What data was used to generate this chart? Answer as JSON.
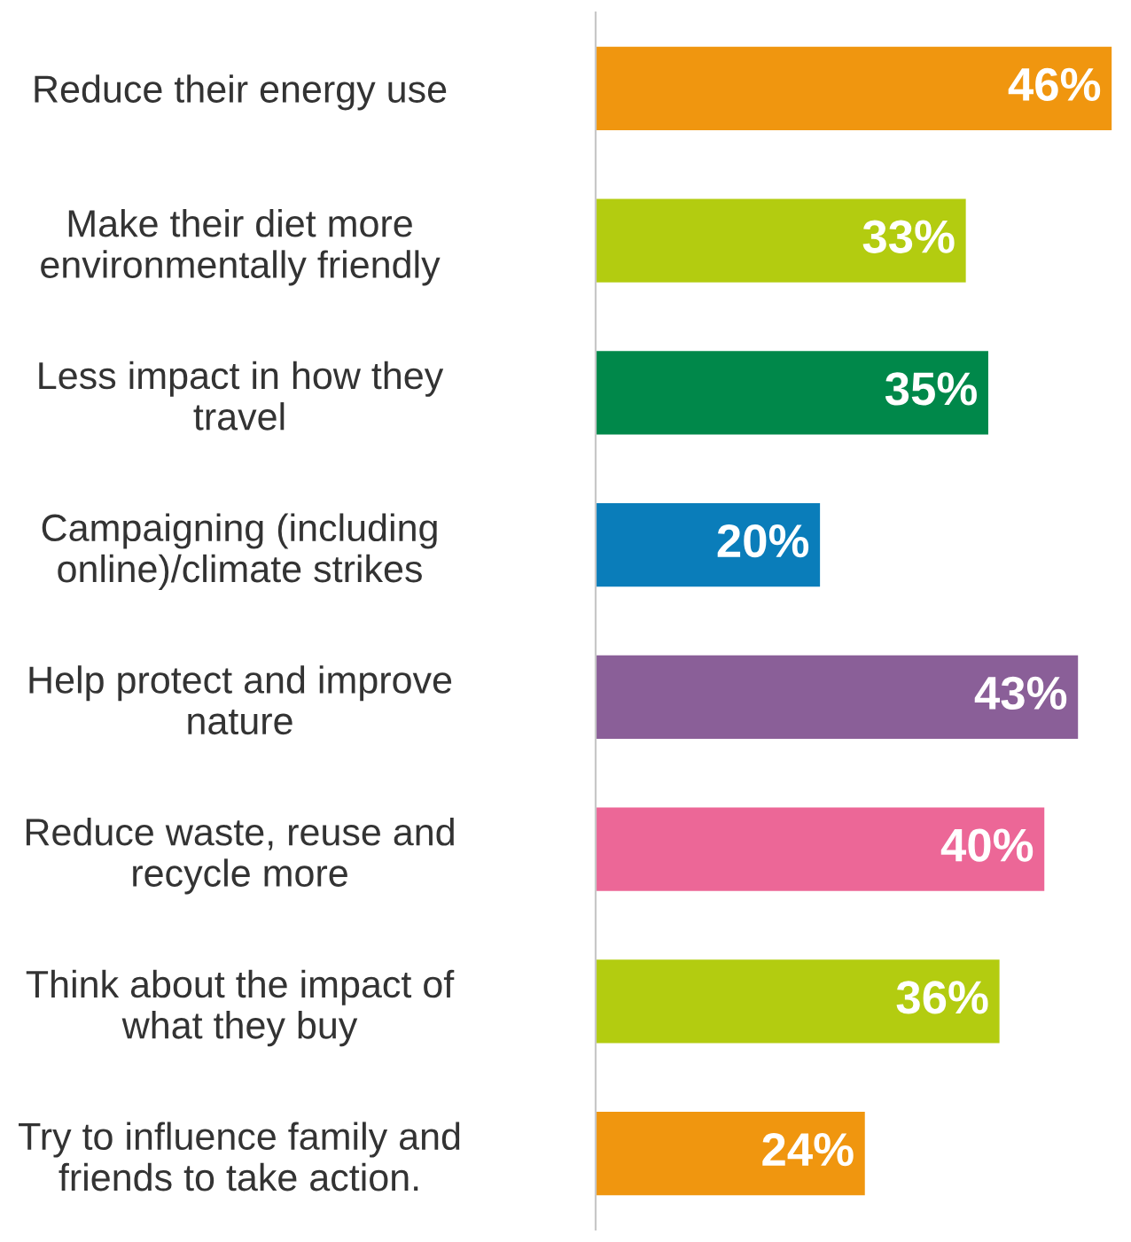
{
  "chart_data": {
    "type": "bar",
    "orientation": "horizontal",
    "categories": [
      "Reduce their energy use",
      "Make their diet more\nenvironmentally friendly",
      "Less impact in how they\ntravel",
      "Campaigning (including\nonline)/climate strikes",
      "Help protect and improve\nnature",
      "Reduce waste, reuse and\nrecycle more",
      "Think about the impact of\nwhat they buy",
      "Try to influence family and\nfriends to take action."
    ],
    "values": [
      46,
      33,
      35,
      20,
      43,
      40,
      36,
      24
    ],
    "colors": [
      "#f0960f",
      "#b3cc10",
      "#00884a",
      "#0a7dba",
      "#8a5f98",
      "#ec6797",
      "#b3cc10",
      "#f0960f"
    ],
    "value_labels": [
      "46%",
      "33%",
      "35%",
      "20%",
      "43%",
      "40%",
      "36%",
      "24%"
    ],
    "grid": false,
    "legend": false
  }
}
